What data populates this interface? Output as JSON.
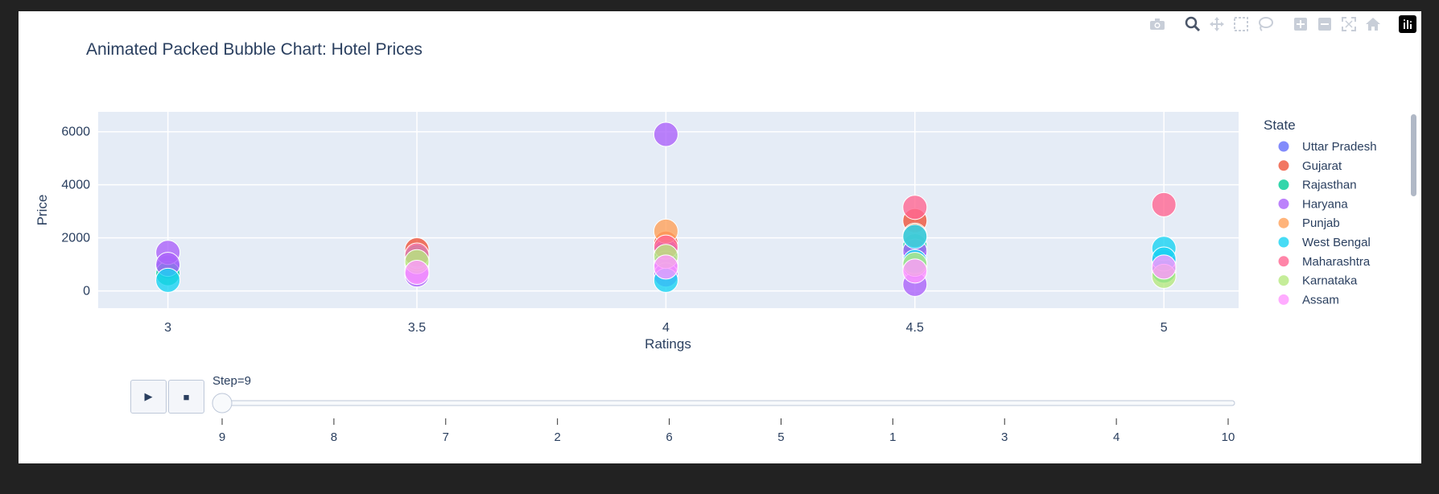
{
  "chart_data": {
    "type": "scatter",
    "title": "Animated Packed Bubble Chart: Hotel Prices",
    "xlabel": "Ratings",
    "ylabel": "Price",
    "x_ticks": [
      "3",
      "3.5",
      "4",
      "4.5",
      "5"
    ],
    "x_range": [
      2.86,
      5.15
    ],
    "y_ticks": [
      "0",
      "2000",
      "4000",
      "6000"
    ],
    "y_range": [
      -650,
      6750
    ],
    "legend_title": "State",
    "series": [
      {
        "name": "Uttar Pradesh",
        "color": "#636efa",
        "points": [
          [
            3,
            900
          ],
          [
            3.5,
            800
          ],
          [
            4,
            1000
          ],
          [
            4.5,
            1300
          ],
          [
            5,
            1100
          ]
        ]
      },
      {
        "name": "Gujarat",
        "color": "#ef553b",
        "points": [
          [
            3.5,
            1550
          ],
          [
            4,
            1800
          ],
          [
            4.5,
            2650
          ]
        ]
      },
      {
        "name": "Rajasthan",
        "color": "#00cc96",
        "points": [
          [
            3,
            650
          ],
          [
            3.5,
            1000
          ],
          [
            4,
            1400
          ],
          [
            4.5,
            1700
          ],
          [
            5,
            750
          ]
        ]
      },
      {
        "name": "Haryana",
        "color": "#ab63fa",
        "points": [
          [
            3,
            1450
          ],
          [
            3,
            1000
          ],
          [
            3.5,
            750
          ],
          [
            3.5,
            600
          ],
          [
            4,
            5900
          ],
          [
            4,
            1500
          ],
          [
            4,
            1050
          ],
          [
            4,
            600
          ],
          [
            4.5,
            1500
          ],
          [
            4.5,
            900
          ],
          [
            4.5,
            250
          ]
        ]
      },
      {
        "name": "Punjab",
        "color": "#ffa15a",
        "points": [
          [
            3.5,
            1200
          ],
          [
            4,
            2250
          ],
          [
            4.5,
            2100
          ]
        ]
      },
      {
        "name": "West Bengal",
        "color": "#19d3f3",
        "points": [
          [
            3,
            400
          ],
          [
            3.5,
            1300
          ],
          [
            4,
            400
          ],
          [
            4.5,
            2050
          ],
          [
            4.5,
            1100
          ],
          [
            5,
            1600
          ],
          [
            5,
            1200
          ]
        ]
      },
      {
        "name": "Maharashtra",
        "color": "#ff6692",
        "points": [
          [
            3.5,
            1350
          ],
          [
            4,
            1650
          ],
          [
            4.5,
            3150
          ],
          [
            5,
            3250
          ]
        ]
      },
      {
        "name": "Karnataka",
        "color": "#b6e880",
        "points": [
          [
            3.5,
            1100
          ],
          [
            4,
            1300
          ],
          [
            4.5,
            1000
          ],
          [
            5,
            550
          ]
        ]
      },
      {
        "name": "Assam",
        "color": "#ff97ff",
        "points": [
          [
            3.5,
            700
          ],
          [
            4,
            900
          ],
          [
            4.5,
            750
          ],
          [
            5,
            900
          ]
        ]
      }
    ],
    "slider": {
      "prefix": "Step=",
      "current": "9",
      "steps": [
        "9",
        "8",
        "7",
        "2",
        "6",
        "5",
        "1",
        "3",
        "4",
        "10"
      ]
    }
  },
  "controls": {
    "play_label": "▶",
    "stop_label": "■"
  },
  "modebar": [
    "camera-icon",
    "zoom-icon",
    "pan-icon",
    "box-select-icon",
    "lasso-icon",
    "zoom-in-icon",
    "zoom-out-icon",
    "autoscale-icon",
    "reset-axes-icon",
    "plotly-logo-icon"
  ]
}
